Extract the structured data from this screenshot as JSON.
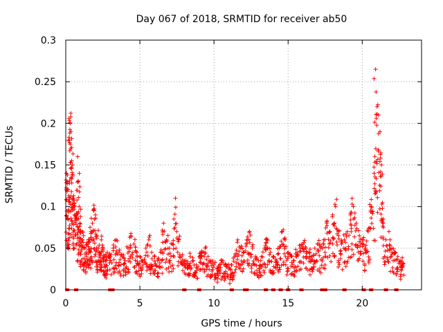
{
  "chart_data": {
    "type": "scatter",
    "title": "Day 067 of 2018, SRMTID for receiver ab50",
    "xlabel": "GPS time / hours",
    "ylabel": "SRMTID / TECUs",
    "xlim": [
      0,
      24
    ],
    "ylim": [
      0,
      0.3
    ],
    "xticks": [
      0,
      5,
      10,
      15,
      20
    ],
    "xtick_labels": [
      "0",
      "5",
      "10",
      "15",
      "20"
    ],
    "yticks": [
      0,
      0.05,
      0.1,
      0.15,
      0.2,
      0.25,
      0.3
    ],
    "ytick_labels": [
      "0",
      "0.05",
      "0.1",
      "0.15",
      "0.2",
      "0.25",
      "0.3"
    ],
    "grid": true,
    "marker": "+",
    "color": "#ff0000",
    "series": [
      {
        "name": "SRMTID",
        "points": [
          [
            0.05,
            0.14
          ],
          [
            0.1,
            0.13
          ],
          [
            0.15,
            0.12
          ],
          [
            0.2,
            0.095
          ],
          [
            0.25,
            0.18
          ],
          [
            0.3,
            0.2
          ],
          [
            0.3,
            0.175
          ],
          [
            0.35,
            0.19
          ],
          [
            0.4,
            0.155
          ],
          [
            0.45,
            0.15
          ],
          [
            0.5,
            0.11
          ],
          [
            0.55,
            0.1
          ],
          [
            0.6,
            0.09
          ],
          [
            0.7,
            0.085
          ],
          [
            0.8,
            0.16
          ],
          [
            0.85,
            0.13
          ],
          [
            0.9,
            0.1
          ],
          [
            0.95,
            0.08
          ],
          [
            1.0,
            0.07
          ],
          [
            1.1,
            0.06
          ],
          [
            1.2,
            0.065
          ],
          [
            1.3,
            0.05
          ],
          [
            1.4,
            0.04
          ],
          [
            1.5,
            0.055
          ],
          [
            1.6,
            0.06
          ],
          [
            1.7,
            0.07
          ],
          [
            1.8,
            0.08
          ],
          [
            1.9,
            0.095
          ],
          [
            2.0,
            0.09
          ],
          [
            2.1,
            0.065
          ],
          [
            2.2,
            0.05
          ],
          [
            2.3,
            0.045
          ],
          [
            2.4,
            0.06
          ],
          [
            2.5,
            0.05
          ],
          [
            2.6,
            0.04
          ],
          [
            2.7,
            0.035
          ],
          [
            2.8,
            0.045
          ],
          [
            3.0,
            0.04
          ],
          [
            3.2,
            0.05
          ],
          [
            3.4,
            0.06
          ],
          [
            3.6,
            0.045
          ],
          [
            3.8,
            0.04
          ],
          [
            4.0,
            0.035
          ],
          [
            4.2,
            0.05
          ],
          [
            4.4,
            0.065
          ],
          [
            4.6,
            0.055
          ],
          [
            4.8,
            0.045
          ],
          [
            5.0,
            0.04
          ],
          [
            5.2,
            0.035
          ],
          [
            5.4,
            0.05
          ],
          [
            5.6,
            0.06
          ],
          [
            5.8,
            0.045
          ],
          [
            6.0,
            0.04
          ],
          [
            6.2,
            0.035
          ],
          [
            6.4,
            0.045
          ],
          [
            6.6,
            0.08
          ],
          [
            6.8,
            0.06
          ],
          [
            7.0,
            0.05
          ],
          [
            7.2,
            0.055
          ],
          [
            7.4,
            0.11
          ],
          [
            7.6,
            0.06
          ],
          [
            7.8,
            0.04
          ],
          [
            8.0,
            0.035
          ],
          [
            8.2,
            0.03
          ],
          [
            8.4,
            0.04
          ],
          [
            8.6,
            0.035
          ],
          [
            8.8,
            0.03
          ],
          [
            9.0,
            0.04
          ],
          [
            9.2,
            0.045
          ],
          [
            9.4,
            0.05
          ],
          [
            9.6,
            0.04
          ],
          [
            9.8,
            0.035
          ],
          [
            10.0,
            0.03
          ],
          [
            10.2,
            0.025
          ],
          [
            10.4,
            0.03
          ],
          [
            10.6,
            0.035
          ],
          [
            10.8,
            0.03
          ],
          [
            11.0,
            0.025
          ],
          [
            11.2,
            0.03
          ],
          [
            11.4,
            0.04
          ],
          [
            11.6,
            0.06
          ],
          [
            11.8,
            0.05
          ],
          [
            12.0,
            0.045
          ],
          [
            12.2,
            0.06
          ],
          [
            12.4,
            0.07
          ],
          [
            12.6,
            0.05
          ],
          [
            12.8,
            0.04
          ],
          [
            13.0,
            0.035
          ],
          [
            13.2,
            0.04
          ],
          [
            13.4,
            0.05
          ],
          [
            13.6,
            0.06
          ],
          [
            13.8,
            0.045
          ],
          [
            14.0,
            0.04
          ],
          [
            14.2,
            0.035
          ],
          [
            14.4,
            0.05
          ],
          [
            14.6,
            0.07
          ],
          [
            14.8,
            0.06
          ],
          [
            15.0,
            0.045
          ],
          [
            15.2,
            0.04
          ],
          [
            15.4,
            0.035
          ],
          [
            15.6,
            0.045
          ],
          [
            15.8,
            0.05
          ],
          [
            16.0,
            0.055
          ],
          [
            16.2,
            0.05
          ],
          [
            16.4,
            0.045
          ],
          [
            16.6,
            0.04
          ],
          [
            16.8,
            0.05
          ],
          [
            17.0,
            0.055
          ],
          [
            17.2,
            0.05
          ],
          [
            17.4,
            0.06
          ],
          [
            17.6,
            0.08
          ],
          [
            17.8,
            0.07
          ],
          [
            18.0,
            0.09
          ],
          [
            18.2,
            0.1
          ],
          [
            18.4,
            0.065
          ],
          [
            18.6,
            0.055
          ],
          [
            18.8,
            0.06
          ],
          [
            19.0,
            0.07
          ],
          [
            19.2,
            0.09
          ],
          [
            19.4,
            0.1
          ],
          [
            19.6,
            0.08
          ],
          [
            19.8,
            0.065
          ],
          [
            20.0,
            0.06
          ],
          [
            20.2,
            0.05
          ],
          [
            20.4,
            0.07
          ],
          [
            20.6,
            0.1
          ],
          [
            20.8,
            0.14
          ],
          [
            20.9,
            0.265
          ],
          [
            21.0,
            0.22
          ],
          [
            21.1,
            0.21
          ],
          [
            21.2,
            0.19
          ],
          [
            21.3,
            0.15
          ],
          [
            21.4,
            0.08
          ],
          [
            21.6,
            0.06
          ],
          [
            21.8,
            0.07
          ],
          [
            22.0,
            0.05
          ],
          [
            22.2,
            0.045
          ],
          [
            22.4,
            0.04
          ],
          [
            22.6,
            0.035
          ],
          [
            22.7,
            0.03
          ]
        ]
      }
    ],
    "zero_points_x": [
      0.1,
      0.7,
      3.0,
      3.15,
      8.0,
      9.0,
      11.2,
      12.1,
      12.2,
      13.5,
      14.0,
      14.5,
      15.0,
      15.9,
      17.3,
      17.4,
      17.5,
      18.8,
      20.1,
      20.6,
      21.6,
      22.3
    ]
  }
}
